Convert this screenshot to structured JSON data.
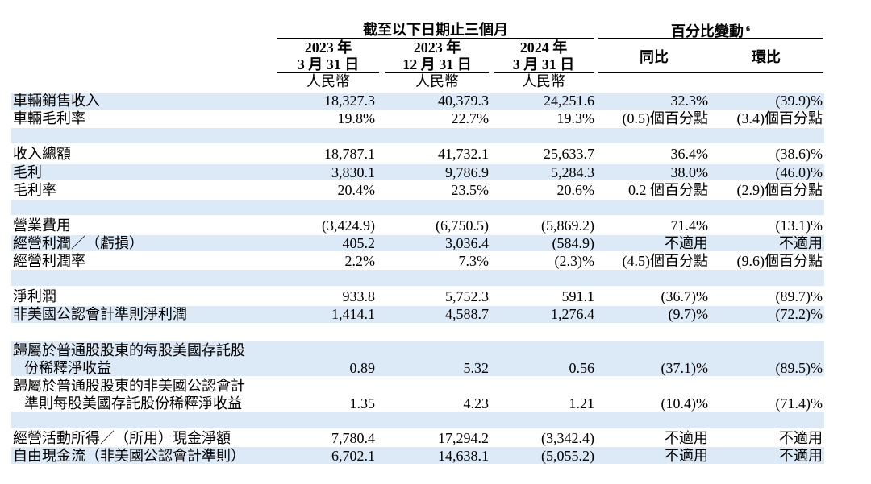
{
  "header": {
    "period_group": "截至以下日期止三個月",
    "pct_group": "百分比變動",
    "pct_footnote": "6",
    "columns": [
      {
        "year": "2023 年",
        "date": "3 月 31 日",
        "unit": "人民幣"
      },
      {
        "year": "2023 年",
        "date": "12 月 31 日",
        "unit": "人民幣"
      },
      {
        "year": "2024 年",
        "date": "3 月 31 日",
        "unit": "人民幣"
      }
    ],
    "yoy": "同比",
    "qoq": "環比"
  },
  "rows": [
    {
      "label": "車輛銷售收入",
      "values": [
        "18,327.3",
        "40,379.3",
        "24,251.6",
        "32.3%",
        "(39.9)%"
      ]
    },
    {
      "label": "車輛毛利率",
      "values": [
        "19.8%",
        "22.7%",
        "19.3%",
        "(0.5)個百分點",
        "(3.4)個百分點"
      ]
    },
    {
      "label": "收入總額",
      "values": [
        "18,787.1",
        "41,732.1",
        "25,633.7",
        "36.4%",
        "(38.6)%"
      ]
    },
    {
      "label": "毛利",
      "values": [
        "3,830.1",
        "9,786.9",
        "5,284.3",
        "38.0%",
        "(46.0)%"
      ]
    },
    {
      "label": "毛利率",
      "values": [
        "20.4%",
        "23.5%",
        "20.6%",
        "0.2 個百分點",
        "(2.9)個百分點"
      ]
    },
    {
      "label": "營業費用",
      "values": [
        "(3,424.9)",
        "(6,750.5)",
        "(5,869.2)",
        "71.4%",
        "(13.1)%"
      ]
    },
    {
      "label": "經營利潤／（虧損）",
      "values": [
        "405.2",
        "3,036.4",
        "(584.9)",
        "不適用",
        "不適用"
      ]
    },
    {
      "label": "經營利潤率",
      "values": [
        "2.2%",
        "7.3%",
        "(2.3)%",
        "(4.5)個百分點",
        "(9.6)個百分點"
      ]
    },
    {
      "label": "淨利潤",
      "values": [
        "933.8",
        "5,752.3",
        "591.1",
        "(36.7)%",
        "(89.7)%"
      ]
    },
    {
      "label": "非美國公認會計準則淨利潤",
      "values": [
        "1,414.1",
        "4,588.7",
        "1,276.4",
        "(9.7)%",
        "(72.2)%"
      ]
    },
    {
      "label": "歸屬於普通股股東的每股美國存託股",
      "label2": "份稀釋淨收益",
      "values": [
        "0.89",
        "5.32",
        "0.56",
        "(37.1)%",
        "(89.5)%"
      ]
    },
    {
      "label": "歸屬於普通股股東的非美國公認會計",
      "label2": "準則每股美國存託股份稀釋淨收益",
      "values": [
        "1.35",
        "4.23",
        "1.21",
        "(10.4)%",
        "(71.4)%"
      ]
    },
    {
      "label": "經營活動所得／（所用）現金淨額",
      "values": [
        "7,780.4",
        "17,294.2",
        "(3,342.4)",
        "不適用",
        "不適用"
      ]
    },
    {
      "label": "自由現金流（非美國公認會計準則）",
      "values": [
        "6,702.1",
        "14,638.1",
        "(5,055.2)",
        "不適用",
        "不適用"
      ]
    }
  ]
}
